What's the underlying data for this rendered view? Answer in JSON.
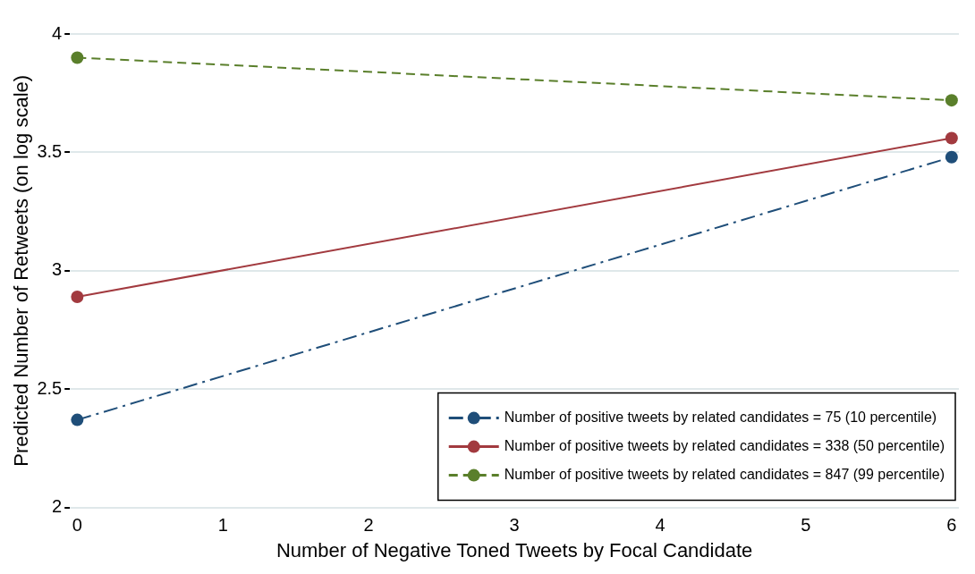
{
  "chart_data": {
    "type": "line",
    "xlabel": "Number of Negative Toned Tweets by Focal Candidate",
    "ylabel": "Predicted Number of Retweets (on log scale)",
    "x": [
      0,
      6
    ],
    "series": [
      {
        "name": "Number of positive tweets by related candidates = 75 (10 percentile)",
        "color": "#1f4e79",
        "values": [
          2.37,
          3.48
        ],
        "line_style": "dashdot"
      },
      {
        "name": "Number of positive tweets by related candidates = 338 (50 percentile)",
        "color": "#a23a3f",
        "values": [
          2.89,
          3.56
        ],
        "line_style": "solid"
      },
      {
        "name": "Number of positive tweets by related candidates = 847 (99 percentile)",
        "color": "#5a7f2b",
        "values": [
          3.9,
          3.72
        ],
        "line_style": "dashed"
      }
    ],
    "xlim": [
      -0.05,
      6.05
    ],
    "xticks": [
      0,
      1,
      2,
      3,
      4,
      5,
      6
    ],
    "ylim": [
      2,
      4
    ],
    "yticks": [
      2,
      2.5,
      3,
      3.5,
      4
    ],
    "grid": "y",
    "legend": "bottom right",
    "marker": "circle"
  }
}
